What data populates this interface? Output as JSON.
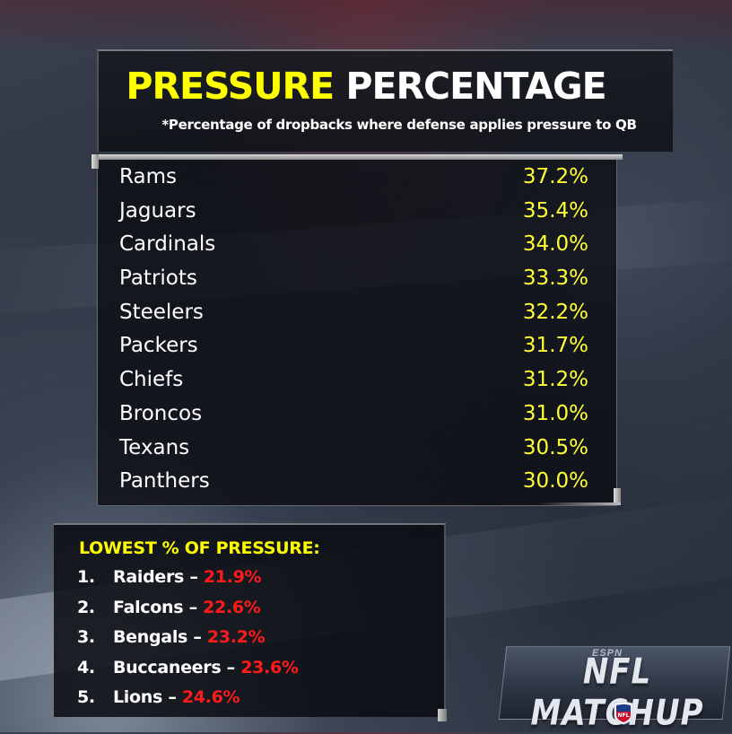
{
  "title": {
    "accent": "PRESSURE",
    "rest": "PERCENTAGE"
  },
  "subtitle": "*Percentage of dropbacks where defense applies pressure to QB",
  "colors": {
    "accent": "#ffff00",
    "value": "#ffff33",
    "low_value": "#ff1a1a",
    "text": "#ffffff"
  },
  "rankings": [
    {
      "team": "Rams",
      "pct": "37.2%"
    },
    {
      "team": "Jaguars",
      "pct": "35.4%"
    },
    {
      "team": "Cardinals",
      "pct": "34.0%"
    },
    {
      "team": "Patriots",
      "pct": "33.3%"
    },
    {
      "team": "Steelers",
      "pct": "32.2%"
    },
    {
      "team": "Packers",
      "pct": "31.7%"
    },
    {
      "team": "Chiefs",
      "pct": "31.2%"
    },
    {
      "team": "Broncos",
      "pct": "31.0%"
    },
    {
      "team": "Texans",
      "pct": "30.5%"
    },
    {
      "team": "Panthers",
      "pct": "30.0%"
    }
  ],
  "lowest": {
    "heading": "LOWEST % OF PRESSURE:",
    "items": [
      {
        "num": "1.",
        "team": "Raiders",
        "pct": "21.9%"
      },
      {
        "num": "2.",
        "team": "Falcons",
        "pct": "22.6%"
      },
      {
        "num": "3.",
        "team": "Bengals",
        "pct": "23.2%"
      },
      {
        "num": "4.",
        "team": "Buccaneers",
        "pct": "23.6%"
      },
      {
        "num": "5.",
        "team": "Lions",
        "pct": "24.6%"
      }
    ]
  },
  "logo": {
    "brand": "ESPN",
    "text": "NFL MATCHUP",
    "icon": "nfl-shield-icon"
  }
}
